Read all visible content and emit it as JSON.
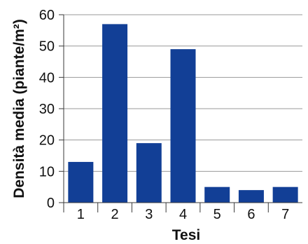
{
  "chart_data": {
    "type": "bar",
    "categories": [
      "1",
      "2",
      "3",
      "4",
      "5",
      "6",
      "7"
    ],
    "values": [
      13,
      57,
      19,
      49,
      5,
      4,
      5
    ],
    "xlabel": "Tesi",
    "ylabel": "Densità media (piante/m²)",
    "ylim": [
      0,
      60
    ],
    "yticks": [
      "0",
      "10",
      "20",
      "30",
      "40",
      "50",
      "60"
    ],
    "grid": true,
    "legend": "none",
    "bar_color": "#123f96",
    "grid_color": "#9a9a9a",
    "axis_color": "#3a3a3a"
  }
}
